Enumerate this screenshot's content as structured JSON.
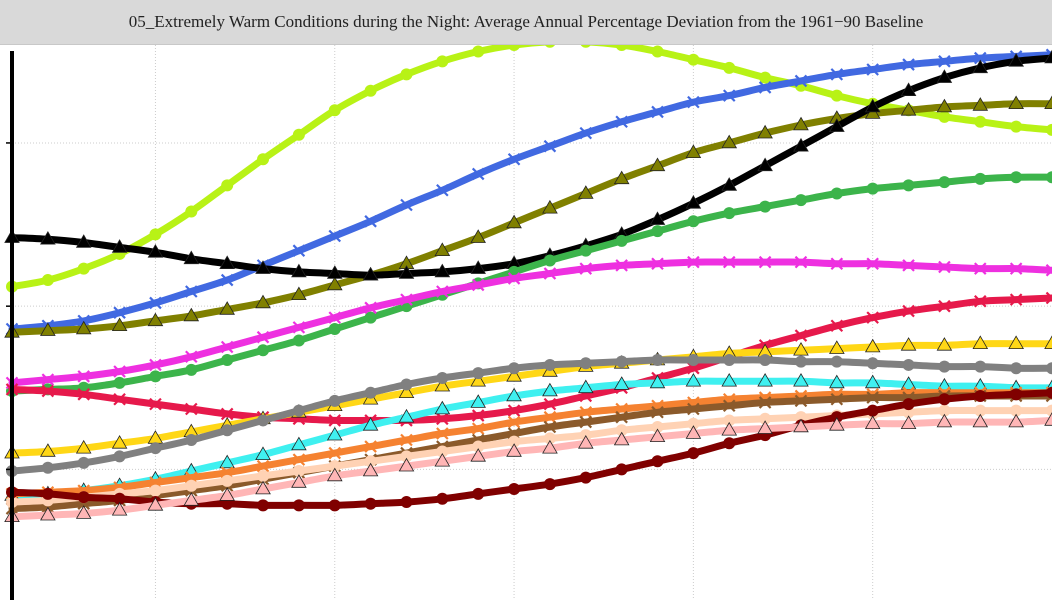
{
  "title": "05_Extremely Warm Conditions during the Night: Average Annual Percentage Deviation from the 1961−90 Baseline",
  "chart_data": {
    "type": "line",
    "title": "05_Extremely Warm Conditions during the Night: Average Annual Percentage Deviation from the 1961−90 Baseline",
    "xlabel": "",
    "ylabel": "",
    "xlim": [
      0,
      29
    ],
    "ylim": [
      0,
      34
    ],
    "grid": true,
    "legend": "none",
    "x": [
      0,
      1,
      2,
      3,
      4,
      5,
      6,
      7,
      8,
      9,
      10,
      11,
      12,
      13,
      14,
      15,
      16,
      17,
      18,
      19,
      20,
      21,
      22,
      23,
      24,
      25,
      26,
      27,
      28,
      29
    ],
    "series": [
      {
        "color": "#b8f216",
        "marker": "circle",
        "values": [
          19.2,
          19.6,
          20.3,
          21.2,
          22.4,
          23.8,
          25.4,
          27.0,
          28.5,
          30.0,
          31.2,
          32.2,
          33.0,
          33.6,
          34.0,
          34.2,
          34.2,
          34.0,
          33.6,
          33.1,
          32.6,
          32.0,
          31.5,
          30.9,
          30.4,
          30.0,
          29.6,
          29.3,
          29.0,
          28.8
        ]
      },
      {
        "color": "#4169e1",
        "marker": "x",
        "values": [
          16.6,
          16.8,
          17.1,
          17.6,
          18.2,
          18.9,
          19.6,
          20.5,
          21.4,
          22.3,
          23.2,
          24.2,
          25.1,
          26.1,
          27.0,
          27.8,
          28.6,
          29.3,
          29.9,
          30.5,
          30.9,
          31.4,
          31.8,
          32.2,
          32.5,
          32.8,
          33.0,
          33.2,
          33.3,
          33.4
        ]
      },
      {
        "color": "#808000",
        "marker": "triangle",
        "values": [
          16.4,
          16.5,
          16.6,
          16.8,
          17.1,
          17.4,
          17.8,
          18.2,
          18.7,
          19.3,
          19.9,
          20.6,
          21.4,
          22.2,
          23.1,
          24.0,
          24.9,
          25.8,
          26.6,
          27.4,
          28.0,
          28.6,
          29.1,
          29.5,
          29.8,
          30.0,
          30.2,
          30.3,
          30.4,
          30.4
        ]
      },
      {
        "color": "#000000",
        "marker": "triangle",
        "values": [
          22.2,
          22.1,
          21.9,
          21.6,
          21.3,
          20.9,
          20.6,
          20.3,
          20.1,
          20.0,
          19.9,
          20.0,
          20.1,
          20.3,
          20.6,
          21.1,
          21.7,
          22.4,
          23.3,
          24.3,
          25.4,
          26.6,
          27.8,
          29.0,
          30.2,
          31.2,
          32.0,
          32.6,
          33.0,
          33.2
        ]
      },
      {
        "color": "#3cb44b",
        "marker": "circle",
        "values": [
          12.8,
          12.9,
          13.0,
          13.3,
          13.7,
          14.1,
          14.7,
          15.3,
          15.9,
          16.6,
          17.3,
          18.0,
          18.7,
          19.4,
          20.1,
          20.8,
          21.4,
          22.0,
          22.6,
          23.2,
          23.7,
          24.1,
          24.5,
          24.9,
          25.2,
          25.4,
          25.6,
          25.8,
          25.9,
          25.9
        ]
      },
      {
        "color": "#ee30e0",
        "marker": "x",
        "values": [
          13.3,
          13.5,
          13.7,
          14.0,
          14.4,
          14.9,
          15.5,
          16.1,
          16.7,
          17.3,
          17.9,
          18.4,
          18.9,
          19.3,
          19.7,
          20.0,
          20.3,
          20.5,
          20.6,
          20.7,
          20.7,
          20.7,
          20.7,
          20.6,
          20.6,
          20.5,
          20.4,
          20.3,
          20.3,
          20.2
        ]
      },
      {
        "color": "#e6194b",
        "marker": "x",
        "values": [
          12.9,
          12.8,
          12.6,
          12.3,
          12.0,
          11.7,
          11.4,
          11.2,
          11.1,
          11.0,
          11.0,
          11.0,
          11.1,
          11.3,
          11.6,
          12.0,
          12.5,
          13.0,
          13.6,
          14.2,
          14.9,
          15.6,
          16.2,
          16.8,
          17.3,
          17.7,
          18.0,
          18.3,
          18.4,
          18.5
        ]
      },
      {
        "color": "#ffd716",
        "marker": "triangle",
        "values": [
          9.0,
          9.1,
          9.3,
          9.6,
          9.9,
          10.3,
          10.7,
          11.1,
          11.5,
          11.9,
          12.3,
          12.7,
          13.1,
          13.4,
          13.7,
          14.0,
          14.3,
          14.5,
          14.7,
          14.9,
          15.1,
          15.2,
          15.3,
          15.4,
          15.5,
          15.6,
          15.6,
          15.7,
          15.7,
          15.7
        ]
      },
      {
        "color": "#808080",
        "marker": "circle",
        "values": [
          7.9,
          8.1,
          8.4,
          8.8,
          9.3,
          9.8,
          10.4,
          11.0,
          11.6,
          12.2,
          12.7,
          13.2,
          13.6,
          13.9,
          14.2,
          14.4,
          14.5,
          14.6,
          14.7,
          14.7,
          14.7,
          14.7,
          14.6,
          14.6,
          14.5,
          14.4,
          14.3,
          14.3,
          14.2,
          14.2
        ]
      },
      {
        "color": "#3ff0f0",
        "marker": "triangle",
        "values": [
          6.4,
          6.5,
          6.7,
          7.0,
          7.4,
          7.9,
          8.4,
          8.9,
          9.5,
          10.1,
          10.7,
          11.2,
          11.7,
          12.1,
          12.5,
          12.8,
          13.0,
          13.2,
          13.3,
          13.4,
          13.4,
          13.4,
          13.4,
          13.3,
          13.3,
          13.2,
          13.1,
          13.1,
          13.0,
          13.0
        ]
      },
      {
        "color": "#f58231",
        "marker": "x",
        "values": [
          6.5,
          6.6,
          6.7,
          6.9,
          7.2,
          7.5,
          7.8,
          8.2,
          8.6,
          9.0,
          9.4,
          9.8,
          10.2,
          10.5,
          10.9,
          11.2,
          11.5,
          11.7,
          11.9,
          12.1,
          12.3,
          12.4,
          12.5,
          12.6,
          12.6,
          12.7,
          12.7,
          12.7,
          12.7,
          12.7
        ]
      },
      {
        "color": "#8b5a2b",
        "marker": "x",
        "values": [
          5.6,
          5.7,
          5.9,
          6.1,
          6.4,
          6.7,
          7.0,
          7.4,
          7.8,
          8.2,
          8.6,
          9.0,
          9.4,
          9.8,
          10.2,
          10.6,
          10.9,
          11.2,
          11.5,
          11.7,
          11.9,
          12.1,
          12.2,
          12.3,
          12.4,
          12.4,
          12.5,
          12.5,
          12.5,
          12.5
        ]
      },
      {
        "color": "#ffd2b4",
        "marker": "circle",
        "values": [
          6.0,
          6.1,
          6.3,
          6.5,
          6.7,
          7.0,
          7.3,
          7.6,
          7.9,
          8.2,
          8.5,
          8.8,
          9.1,
          9.4,
          9.7,
          9.9,
          10.1,
          10.4,
          10.6,
          10.8,
          11.0,
          11.1,
          11.2,
          11.3,
          11.4,
          11.5,
          11.6,
          11.6,
          11.6,
          11.6
        ]
      },
      {
        "color": "#800000",
        "marker": "circle",
        "values": [
          6.6,
          6.5,
          6.3,
          6.2,
          6.0,
          5.9,
          5.9,
          5.8,
          5.8,
          5.8,
          5.9,
          6.0,
          6.2,
          6.5,
          6.8,
          7.1,
          7.5,
          8.0,
          8.5,
          9.0,
          9.6,
          10.1,
          10.7,
          11.2,
          11.6,
          12.0,
          12.3,
          12.5,
          12.6,
          12.7
        ]
      },
      {
        "color": "#ffb6b6",
        "marker": "triangle",
        "values": [
          5.1,
          5.2,
          5.3,
          5.5,
          5.8,
          6.1,
          6.4,
          6.8,
          7.2,
          7.6,
          7.9,
          8.2,
          8.5,
          8.8,
          9.1,
          9.3,
          9.6,
          9.8,
          10.0,
          10.2,
          10.4,
          10.5,
          10.6,
          10.7,
          10.8,
          10.8,
          10.9,
          10.9,
          10.9,
          11.0
        ]
      }
    ]
  }
}
